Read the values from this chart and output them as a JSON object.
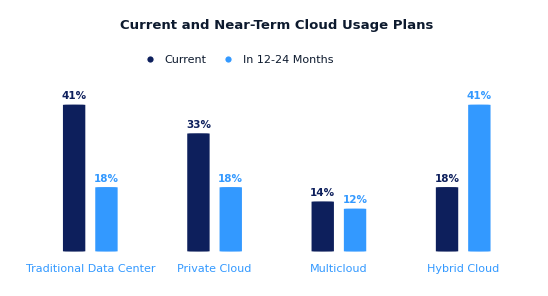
{
  "title": "Current and Near-Term Cloud Usage Plans",
  "categories": [
    "Traditional Data Center",
    "Private Cloud",
    "Multicloud",
    "Hybrid Cloud"
  ],
  "current_values": [
    41,
    33,
    14,
    18
  ],
  "future_values": [
    18,
    18,
    12,
    41
  ],
  "current_color": "#0d1f5c",
  "future_color": "#3399ff",
  "label_color_current": "#0d1f5c",
  "label_color_future": "#3399ff",
  "legend_label_current": "Current",
  "legend_label_future": "In 12-24 Months",
  "x_label_color": "#3399ff",
  "background_color": "#ffffff",
  "bar_width": 0.18,
  "bar_gap": 0.08,
  "ylim": [
    0,
    52
  ],
  "title_fontsize": 9.5,
  "tick_fontsize": 8,
  "label_fontsize": 7.5,
  "legend_fontsize": 8
}
